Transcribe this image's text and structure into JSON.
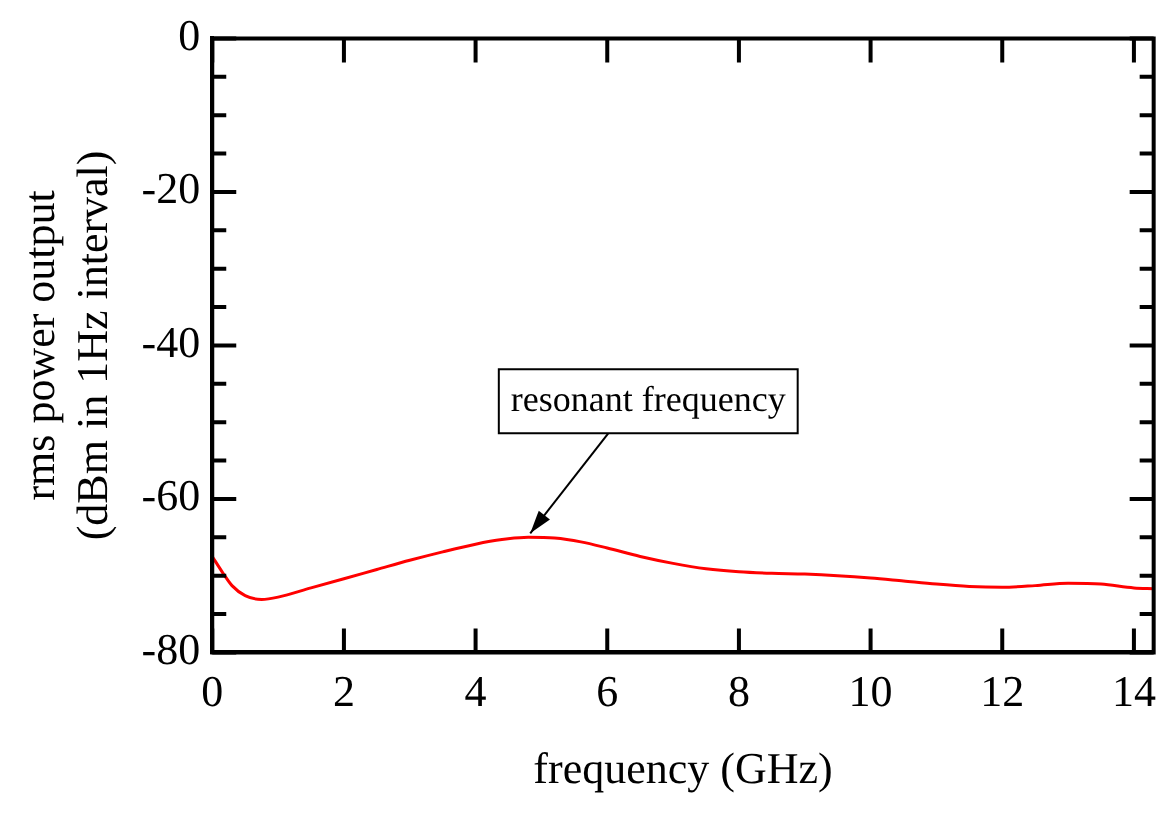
{
  "chart_data": {
    "type": "line",
    "xlabel": "frequency (GHz)",
    "ylabel": "rms power output\n(dBm in 1Hz interval)",
    "x": [
      0,
      0.15,
      0.3,
      0.5,
      0.75,
      1,
      1.5,
      2,
      2.5,
      3,
      3.5,
      4,
      4.4,
      4.8,
      5.2,
      5.6,
      6,
      6.5,
      7,
      7.5,
      8,
      8.5,
      9,
      9.5,
      10,
      10.5,
      11,
      11.5,
      12,
      12.5,
      13,
      13.5,
      14,
      14.3
    ],
    "series": [
      {
        "color": "#ff0000",
        "values": [
          -67.5,
          -69.5,
          -71.3,
          -72.6,
          -73.1,
          -72.8,
          -71.6,
          -70.4,
          -69.2,
          -68,
          -66.9,
          -65.9,
          -65.3,
          -65,
          -65.1,
          -65.6,
          -66.4,
          -67.5,
          -68.4,
          -69.1,
          -69.5,
          -69.7,
          -69.8,
          -70,
          -70.3,
          -70.7,
          -71.1,
          -71.4,
          -71.5,
          -71.3,
          -71,
          -71.1,
          -71.6,
          -71.7
        ]
      }
    ],
    "xlim": [
      0,
      14.3
    ],
    "xticks": [
      0,
      2,
      4,
      6,
      8,
      10,
      12,
      14
    ],
    "ylim": [
      -80,
      0
    ],
    "yticks": [
      -80,
      {
        "value": -75,
        "label": null
      },
      {
        "value": -70,
        "label": null
      },
      {
        "value": -65,
        "label": null
      },
      -60,
      {
        "value": -55,
        "label": null
      },
      {
        "value": -50,
        "label": null
      },
      {
        "value": -45,
        "label": null
      },
      -40,
      {
        "value": -35,
        "label": null
      },
      {
        "value": -30,
        "label": null
      },
      {
        "value": -25,
        "label": null
      },
      -20,
      {
        "value": -15,
        "label": null
      },
      {
        "value": -10,
        "label": null
      },
      {
        "value": -5,
        "label": null
      },
      0
    ],
    "annotations": [
      {
        "text": "resonant frequency",
        "x": 4.8,
        "y": -65
      }
    ],
    "legend": false,
    "grid": false,
    "marker": "none",
    "line_style": "solid"
  }
}
